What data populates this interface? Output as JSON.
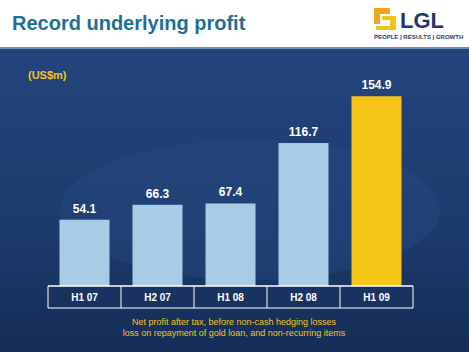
{
  "chart_data": {
    "type": "bar",
    "title": "Record underlying profit",
    "ylabel": "(US$m)",
    "categories": [
      "H1 07",
      "H2 07",
      "H1 08",
      "H2 08",
      "H1 09"
    ],
    "values": [
      54.1,
      66.3,
      67.4,
      116.7,
      154.9
    ],
    "colors": [
      "#a8cbe6",
      "#a8cbe6",
      "#a8cbe6",
      "#a8cbe6",
      "#f5c518"
    ],
    "ylim": [
      0,
      160
    ],
    "data_labels": true,
    "tick_labels": "x",
    "annotations": [
      "Net profit after tax, before non-cash hedging losses",
      "loss on repayment of gold loan, and non-recurring items"
    ],
    "logo": {
      "name": "LGL",
      "tagline": "PEOPLE | RESULTS | GROWTH"
    }
  }
}
